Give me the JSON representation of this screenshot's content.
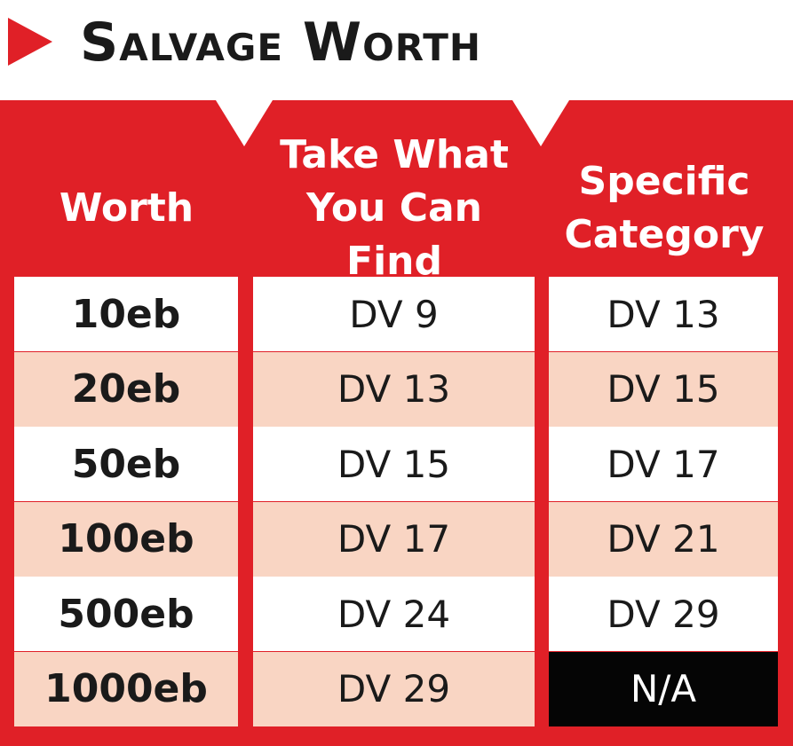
{
  "title": "Salvage Worth",
  "colors": {
    "accent": "#e02027",
    "row_alt": "#f9d5c3",
    "row": "#ffffff",
    "na_cell": "#050505"
  },
  "columns": [
    "Worth",
    "Take What You Can Find",
    "Specific Category"
  ],
  "rows": [
    {
      "worth": "10eb",
      "take": "DV 9",
      "specific": "DV 13"
    },
    {
      "worth": "20eb",
      "take": "DV 13",
      "specific": "DV 15"
    },
    {
      "worth": "50eb",
      "take": "DV 15",
      "specific": "DV 17"
    },
    {
      "worth": "100eb",
      "take": "DV 17",
      "specific": "DV 21"
    },
    {
      "worth": "500eb",
      "take": "DV 24",
      "specific": "DV 29"
    },
    {
      "worth": "1000eb",
      "take": "DV 29",
      "specific": "N/A"
    }
  ]
}
